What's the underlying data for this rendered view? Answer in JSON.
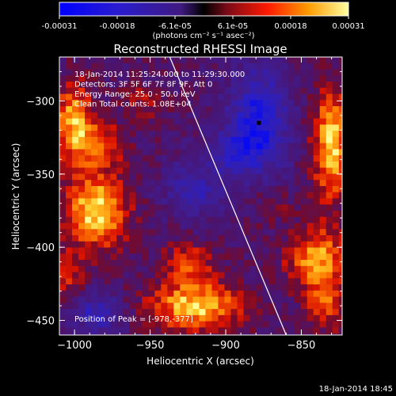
{
  "colorbar": {
    "tick_labels": [
      "-0.00031",
      "-0.00018",
      "-6.1e-05",
      "6.1e-05",
      "0.00018",
      "0.00031"
    ],
    "unit_label": "(photons cm⁻² s⁻¹ asec⁻²)"
  },
  "chart_data": {
    "type": "heatmap",
    "title": "Reconstructed RHESSI Image",
    "xlabel": "Heliocentric X (arcsec)",
    "ylabel": "Heliocentric Y (arcsec)",
    "xlim": [
      -1010,
      -823
    ],
    "ylim": [
      -460,
      -270
    ],
    "x_ticks": [
      -1000,
      -950,
      -900,
      -850
    ],
    "y_ticks": [
      -300,
      -350,
      -400,
      -450
    ],
    "x_tick_labels": [
      "−1000",
      "−950",
      "−900",
      "−850"
    ],
    "y_tick_labels": [
      "−300",
      "−350",
      "−400",
      "−450"
    ],
    "value_range": [
      -0.00031,
      0.00031
    ],
    "annotations": [
      "18-Jan-2014 11:25:24.000 to 11:29:30.000",
      "Detectors: 3F 5F 6F 7F 8F 9F, Att 0",
      "Energy Range: 25.0 - 50.0 keV",
      "Clean     Total counts: 1.08E+04"
    ],
    "peak_label": "Position of Peak = [-978,-377]",
    "peak": [
      -978,
      -377
    ],
    "limb_line": [
      [
        -937,
        -270
      ],
      [
        -860,
        -460
      ]
    ],
    "marker": [
      -878,
      -315
    ],
    "hotspots": [
      {
        "x": -985,
        "y": -375,
        "intensity": 1.0,
        "sx": 14,
        "sy": 18
      },
      {
        "x": -1000,
        "y": -315,
        "intensity": 0.85,
        "sx": 9,
        "sy": 20
      },
      {
        "x": -980,
        "y": -330,
        "intensity": 0.55,
        "sx": 10,
        "sy": 10
      },
      {
        "x": -920,
        "y": -440,
        "intensity": 0.9,
        "sx": 22,
        "sy": 12
      },
      {
        "x": -925,
        "y": -410,
        "intensity": 0.5,
        "sx": 12,
        "sy": 10
      },
      {
        "x": -830,
        "y": -330,
        "intensity": 0.9,
        "sx": 9,
        "sy": 28
      },
      {
        "x": -840,
        "y": -408,
        "intensity": 0.8,
        "sx": 14,
        "sy": 14
      },
      {
        "x": -832,
        "y": -440,
        "intensity": 0.55,
        "sx": 10,
        "sy": 12
      },
      {
        "x": -1005,
        "y": -420,
        "intensity": 0.45,
        "sx": 8,
        "sy": 12
      },
      {
        "x": -955,
        "y": -300,
        "intensity": 0.3,
        "sx": 10,
        "sy": 10
      },
      {
        "x": -870,
        "y": -370,
        "intensity": 0.25,
        "sx": 10,
        "sy": 10
      }
    ],
    "coldspots": [
      {
        "x": -878,
        "y": -315,
        "intensity": 1.0,
        "sx": 14,
        "sy": 26
      },
      {
        "x": -920,
        "y": -360,
        "intensity": 0.6,
        "sx": 14,
        "sy": 14
      },
      {
        "x": -985,
        "y": -445,
        "intensity": 0.7,
        "sx": 12,
        "sy": 10
      },
      {
        "x": -895,
        "y": -335,
        "intensity": 0.5,
        "sx": 10,
        "sy": 10
      }
    ]
  },
  "footer": {
    "timestamp": "18-Jan-2014 18:45"
  }
}
